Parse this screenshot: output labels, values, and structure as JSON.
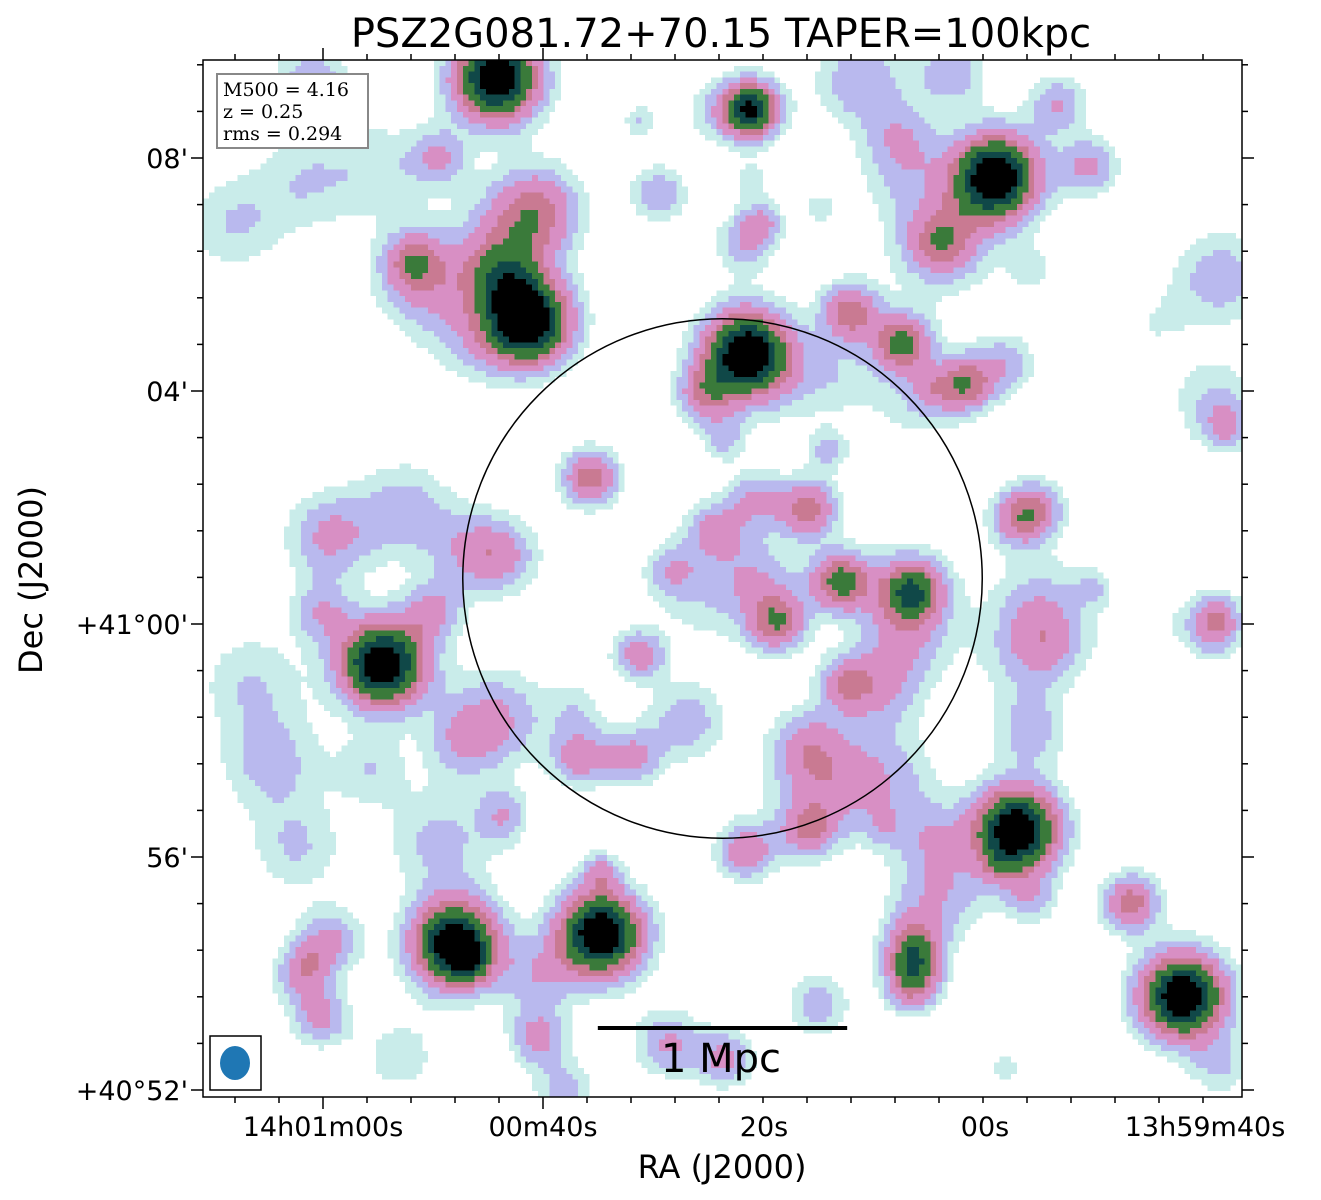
{
  "chart_data": {
    "type": "heatmap",
    "title": "PSZ2G081.72+70.15 TAPER=100kpc",
    "xlabel": "RA (J2000)",
    "ylabel": "Dec (J2000)",
    "x_ticks": [
      "14h01m00s",
      "00m40s",
      "20s",
      "00s",
      "13h59m40s"
    ],
    "y_ticks": [
      "+40°52'",
      "56'",
      "+41°00'",
      "04'",
      "08'"
    ],
    "info_box": [
      "M500 = 4.16",
      "z = 0.25",
      "rms = 0.294"
    ],
    "scale_bar_label": "1 Mpc",
    "colormap": [
      "#ffffff",
      "#c9ecea",
      "#b9b9ee",
      "#d88fc4",
      "#c97a92",
      "#3a7a3a",
      "#104848",
      "#000000"
    ],
    "circle_color": "#000000",
    "beam_color": "#1f77b4",
    "sources": [
      {
        "x": 0.28,
        "y": 0.985,
        "peak": 6
      },
      {
        "x": 0.525,
        "y": 0.955,
        "peak": 5
      },
      {
        "x": 0.76,
        "y": 0.89,
        "peak": 6
      },
      {
        "x": 0.31,
        "y": 0.75,
        "peak": 6
      },
      {
        "x": 0.52,
        "y": 0.72,
        "peak": 6
      },
      {
        "x": 0.62,
        "y": 0.76,
        "peak": 3
      },
      {
        "x": 0.67,
        "y": 0.73,
        "peak": 3.5
      },
      {
        "x": 0.73,
        "y": 0.69,
        "peak": 3
      },
      {
        "x": 0.48,
        "y": 0.68,
        "peak": 2.2
      },
      {
        "x": 0.2,
        "y": 0.81,
        "peak": 2
      },
      {
        "x": 0.37,
        "y": 0.6,
        "peak": 3
      },
      {
        "x": 0.58,
        "y": 0.57,
        "peak": 3
      },
      {
        "x": 0.61,
        "y": 0.5,
        "peak": 3.5
      },
      {
        "x": 0.68,
        "y": 0.49,
        "peak": 3
      },
      {
        "x": 0.55,
        "y": 0.46,
        "peak": 3
      },
      {
        "x": 0.49,
        "y": 0.55,
        "peak": 2
      },
      {
        "x": 0.53,
        "y": 0.58,
        "peak": 1.8
      },
      {
        "x": 0.17,
        "y": 0.42,
        "peak": 6
      },
      {
        "x": 0.78,
        "y": 0.56,
        "peak": 2
      },
      {
        "x": 0.36,
        "y": 0.33,
        "peak": 2.2
      },
      {
        "x": 0.41,
        "y": 0.33,
        "peak": 2
      },
      {
        "x": 0.52,
        "y": 0.24,
        "peak": 2.5
      },
      {
        "x": 0.58,
        "y": 0.26,
        "peak": 2.3
      },
      {
        "x": 0.78,
        "y": 0.26,
        "peak": 6
      },
      {
        "x": 0.24,
        "y": 0.15,
        "peak": 6
      },
      {
        "x": 0.38,
        "y": 0.16,
        "peak": 6
      },
      {
        "x": 0.68,
        "y": 0.15,
        "peak": 2.5
      },
      {
        "x": 0.68,
        "y": 0.11,
        "peak": 2.5
      },
      {
        "x": 0.89,
        "y": 0.19,
        "peak": 3
      },
      {
        "x": 0.94,
        "y": 0.1,
        "peak": 6
      },
      {
        "x": 0.11,
        "y": 0.08,
        "peak": 2
      },
      {
        "x": 0.32,
        "y": 0.06,
        "peak": 2
      },
      {
        "x": 0.5,
        "y": 0.04,
        "peak": 2
      },
      {
        "x": 0.85,
        "y": 0.9,
        "peak": 2
      },
      {
        "x": 0.82,
        "y": 0.96,
        "peak": 1.8
      },
      {
        "x": 0.8,
        "y": 0.57,
        "peak": 2
      },
      {
        "x": 0.97,
        "y": 0.45,
        "peak": 1.5
      },
      {
        "x": 0.09,
        "y": 0.12,
        "peak": 1.5
      }
    ],
    "cluster_circle": {
      "ra_frac": 0.5,
      "dec_frac": 0.5,
      "radius_frac": 0.25
    },
    "scale_bar": {
      "length_frac": 0.24
    }
  }
}
